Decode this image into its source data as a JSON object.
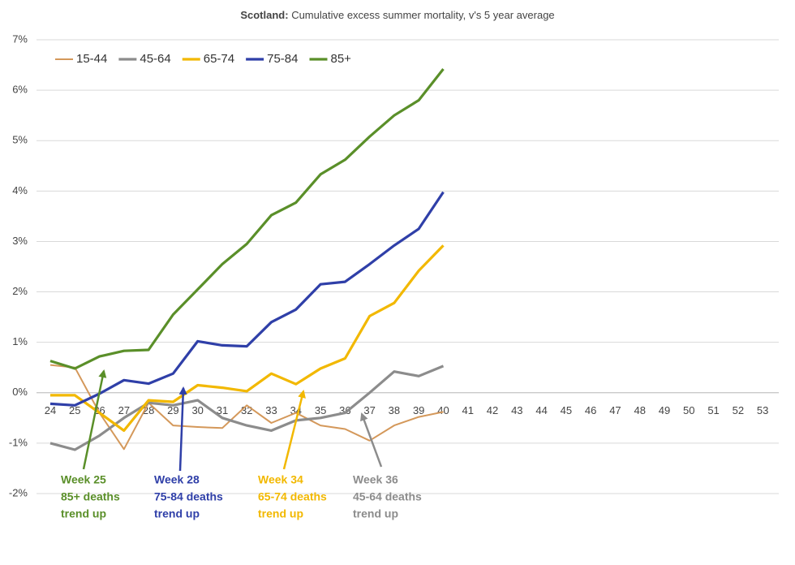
{
  "chart_data": {
    "type": "line",
    "title_bold": "Scotland:",
    "title": "Cumulative excess summer mortality, v's 5 year average",
    "categories": [
      "24",
      "25",
      "26",
      "27",
      "28",
      "29",
      "30",
      "31",
      "32",
      "33",
      "34",
      "35",
      "36",
      "37",
      "38",
      "39",
      "40",
      "41",
      "42",
      "43",
      "44",
      "45",
      "46",
      "47",
      "48",
      "49",
      "50",
      "51",
      "52",
      "53"
    ],
    "series": [
      {
        "name": "15-44",
        "color": "#d4985a",
        "values": [
          0.55,
          0.5,
          -0.4,
          -1.12,
          -0.2,
          -0.65,
          -0.68,
          -0.7,
          -0.25,
          -0.6,
          -0.4,
          -0.65,
          -0.72,
          -0.95,
          -0.65,
          -0.48,
          -0.38,
          null,
          null,
          null,
          null,
          null,
          null,
          null,
          null,
          null,
          null,
          null,
          null,
          null
        ]
      },
      {
        "name": "45-64",
        "color": "#8c8c8c",
        "values": [
          -1.0,
          -1.13,
          -0.85,
          -0.5,
          -0.2,
          -0.25,
          -0.15,
          -0.5,
          -0.65,
          -0.75,
          -0.55,
          -0.5,
          -0.4,
          0.0,
          0.42,
          0.33,
          0.53,
          null,
          null,
          null,
          null,
          null,
          null,
          null,
          null,
          null,
          null,
          null,
          null,
          null
        ]
      },
      {
        "name": "65-74",
        "color": "#f2b800",
        "values": [
          -0.05,
          -0.05,
          -0.4,
          -0.75,
          -0.15,
          -0.18,
          0.15,
          0.1,
          0.03,
          0.38,
          0.17,
          0.48,
          0.68,
          1.52,
          1.78,
          2.42,
          2.92,
          null,
          null,
          null,
          null,
          null,
          null,
          null,
          null,
          null,
          null,
          null,
          null,
          null
        ]
      },
      {
        "name": "75-84",
        "color": "#2f3fa8",
        "values": [
          -0.22,
          -0.25,
          -0.02,
          0.25,
          0.18,
          0.38,
          1.02,
          0.94,
          0.92,
          1.4,
          1.65,
          2.15,
          2.2,
          2.55,
          2.92,
          3.25,
          3.98,
          null,
          null,
          null,
          null,
          null,
          null,
          null,
          null,
          null,
          null,
          null,
          null,
          null
        ]
      },
      {
        "name": "85+",
        "color": "#5a8f29",
        "values": [
          0.63,
          0.48,
          0.72,
          0.83,
          0.85,
          1.55,
          2.05,
          2.55,
          2.95,
          3.52,
          3.77,
          4.33,
          4.62,
          5.08,
          5.5,
          5.8,
          6.42,
          null,
          null,
          null,
          null,
          null,
          null,
          null,
          null,
          null,
          null,
          null,
          null,
          null
        ]
      }
    ],
    "ylim": [
      -2,
      7
    ],
    "yticks": [
      {
        "value": -2,
        "label": "-2%"
      },
      {
        "value": -1,
        "label": "-1%"
      },
      {
        "value": 0,
        "label": "0%"
      },
      {
        "value": 1,
        "label": "1%"
      },
      {
        "value": 2,
        "label": "2%"
      },
      {
        "value": 3,
        "label": "3%"
      },
      {
        "value": 4,
        "label": "4%"
      },
      {
        "value": 5,
        "label": "5%"
      },
      {
        "value": 6,
        "label": "6%"
      },
      {
        "value": 7,
        "label": "7%"
      }
    ],
    "grid": true,
    "legend": "top-left",
    "annotations": [
      {
        "lines": [
          "Week 25",
          "85+ deaths",
          "trend up"
        ],
        "color": "#5a8f29"
      },
      {
        "lines": [
          "Week 28",
          "75-84 deaths",
          "trend up"
        ],
        "color": "#2f3fa8"
      },
      {
        "lines": [
          "Week 34",
          "65-74 deaths",
          "trend up"
        ],
        "color": "#f2b800"
      },
      {
        "lines": [
          "Week 36",
          "45-64 deaths",
          "trend up"
        ],
        "color": "#8c8c8c"
      }
    ]
  }
}
